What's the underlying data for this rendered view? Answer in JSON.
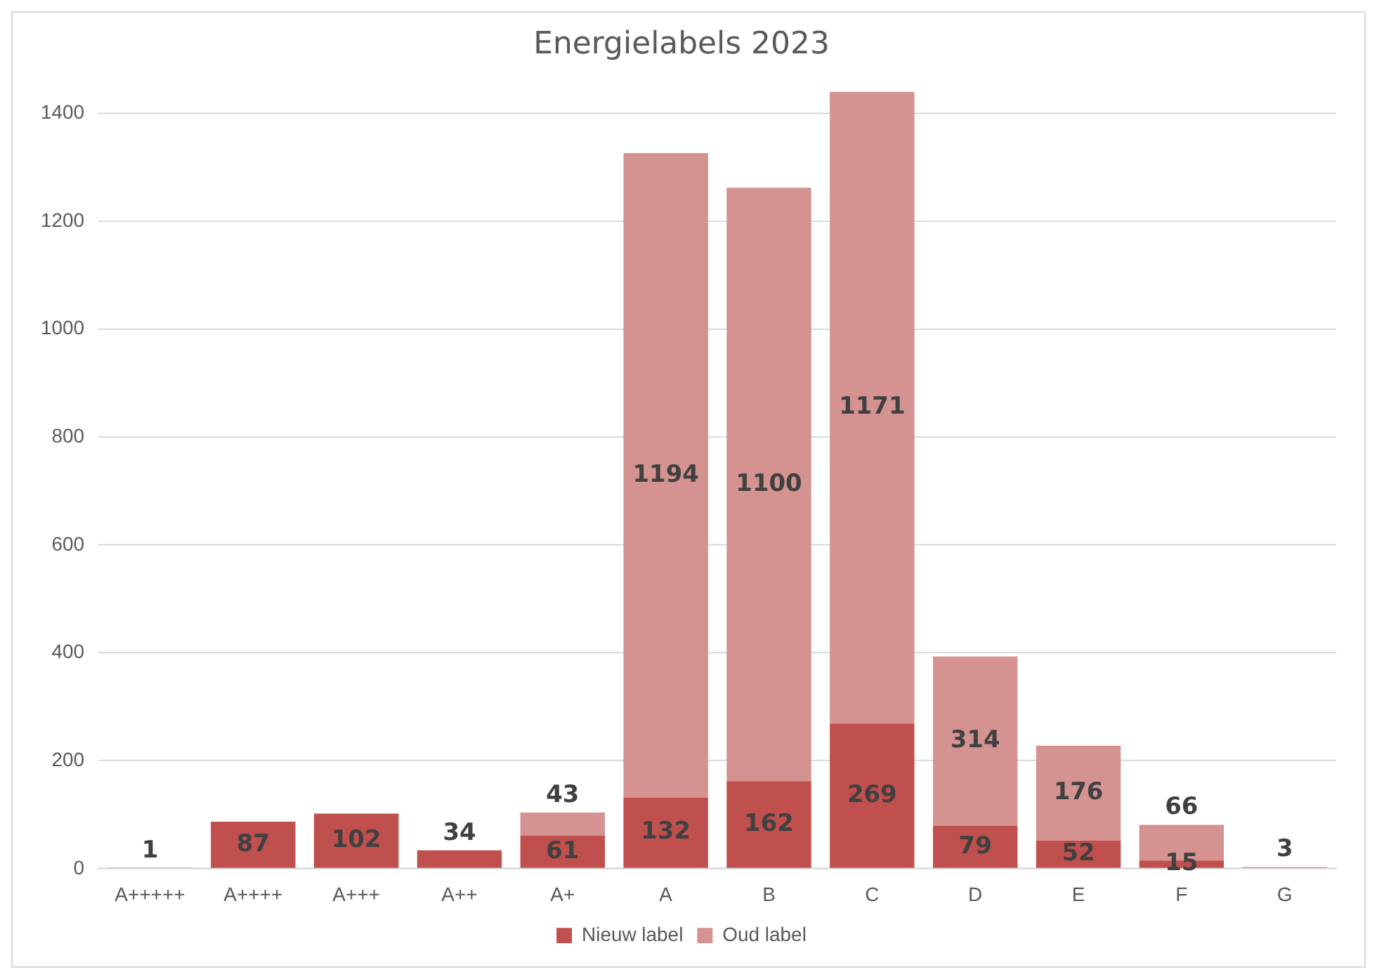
{
  "chart_data": {
    "type": "bar",
    "title": "Energielabels 2023",
    "stacked": true,
    "categories": [
      "A+++++",
      "A++++",
      "A+++",
      "A++",
      "A+",
      "A",
      "B",
      "C",
      "D",
      "E",
      "F",
      "G"
    ],
    "series": [
      {
        "name": "Nieuw label",
        "color": "#c0504d",
        "values": [
          1,
          87,
          102,
          34,
          61,
          132,
          162,
          269,
          79,
          52,
          15,
          null
        ]
      },
      {
        "name": "Oud label",
        "color": "#d49391",
        "values": [
          null,
          null,
          null,
          null,
          43,
          1194,
          1100,
          1171,
          314,
          176,
          66,
          3
        ]
      }
    ],
    "ylim": [
      0,
      1440
    ],
    "yticks": [
      0,
      200,
      400,
      600,
      800,
      1000,
      1200,
      1400
    ],
    "grid": "y",
    "legend": "bottom",
    "data_labels": true
  }
}
